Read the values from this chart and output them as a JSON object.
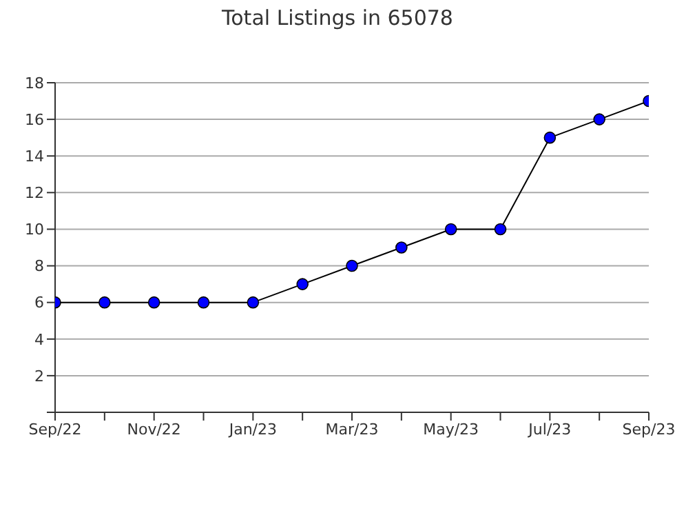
{
  "chart_data": {
    "type": "line",
    "title": "Total Listings in 65078",
    "categories": [
      "Sep/22",
      null,
      "Nov/22",
      null,
      "Jan/23",
      null,
      "Mar/23",
      null,
      "May/23",
      null,
      "Jul/23",
      null,
      "Sep/23"
    ],
    "series": [
      {
        "color": "#0000ff",
        "values": [
          6,
          6,
          6,
          6,
          6,
          7,
          8,
          9,
          10,
          10,
          15,
          16,
          17
        ]
      }
    ],
    "ylim": [
      0,
      18
    ],
    "yticks": [
      {
        "value": 0,
        "label": null
      },
      2,
      4,
      6,
      8,
      10,
      12,
      14,
      16,
      18
    ],
    "grid": "y",
    "marker": "circle",
    "legend": false
  }
}
